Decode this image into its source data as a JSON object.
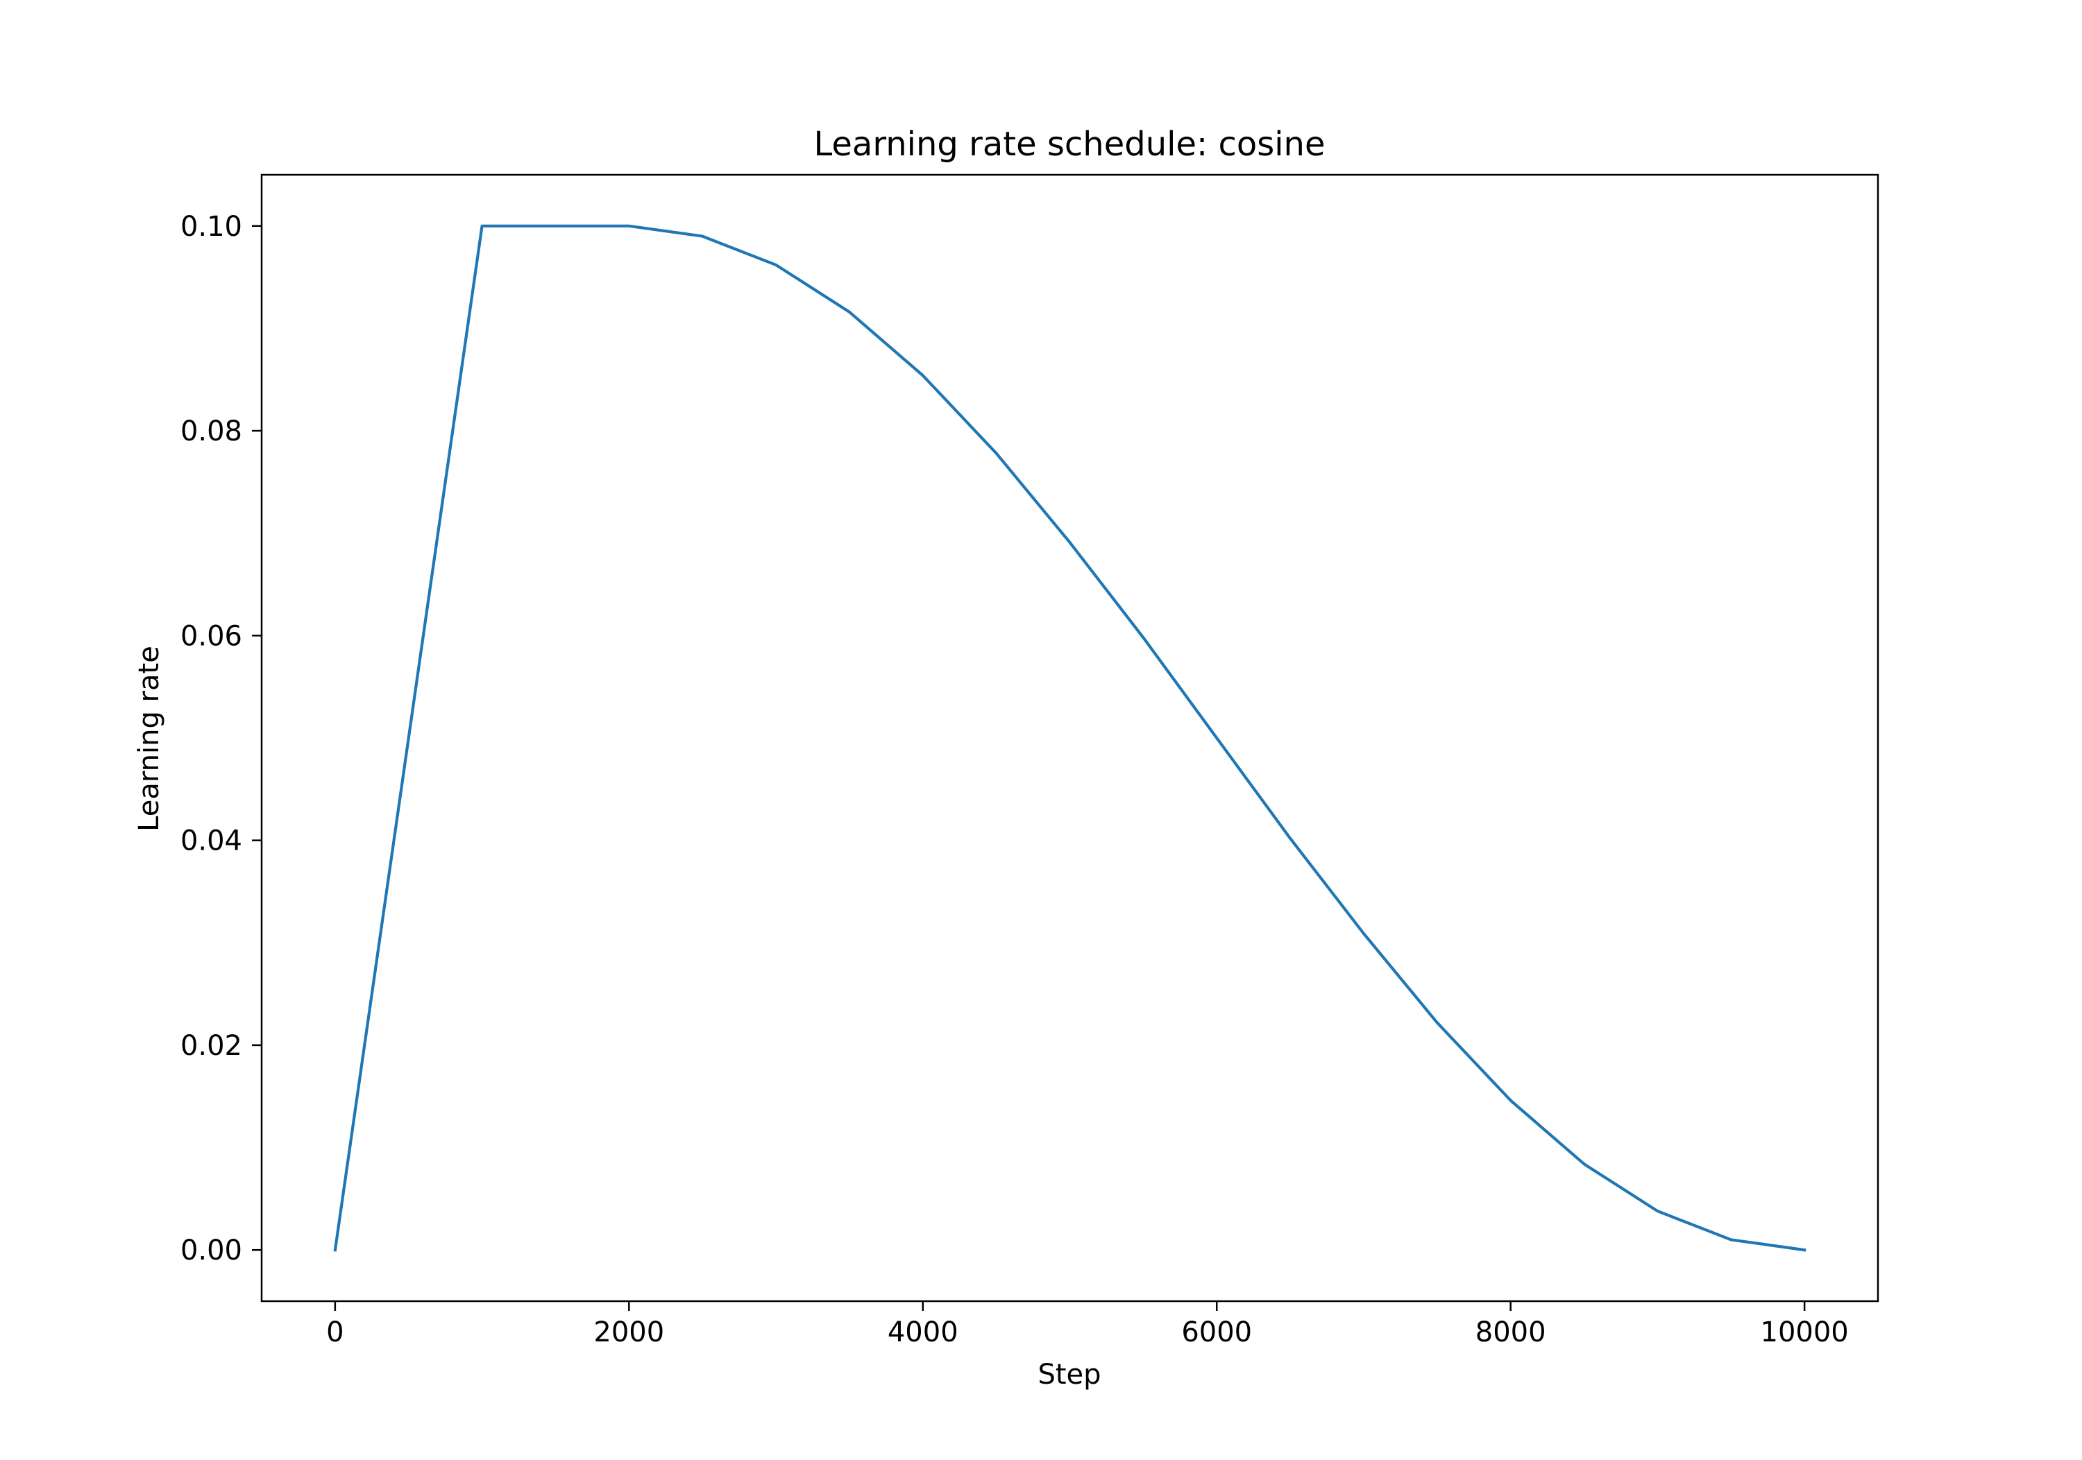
{
  "chart_data": {
    "type": "line",
    "title": "Learning rate schedule: cosine",
    "xlabel": "Step",
    "ylabel": "Learning rate",
    "xlim": [
      -500,
      10500
    ],
    "ylim": [
      -0.005,
      0.105
    ],
    "xticks": [
      0,
      2000,
      4000,
      6000,
      8000,
      10000
    ],
    "xtick_labels": [
      "0",
      "2000",
      "4000",
      "6000",
      "8000",
      "10000"
    ],
    "yticks": [
      0.0,
      0.02,
      0.04,
      0.06,
      0.08,
      0.1
    ],
    "ytick_labels": [
      "0.00",
      "0.02",
      "0.04",
      "0.06",
      "0.08",
      "0.10"
    ],
    "grid": false,
    "legend": "none",
    "series": [
      {
        "color": "#1f77b4",
        "x": [
          0,
          1000,
          2000,
          2500,
          3000,
          3500,
          4000,
          4500,
          5000,
          5500,
          6000,
          6500,
          7000,
          7500,
          8000,
          8500,
          9000,
          9500,
          10000
        ],
        "y": [
          0.0,
          0.1,
          0.1,
          0.099,
          0.0962,
          0.0916,
          0.0854,
          0.0778,
          0.0691,
          0.0598,
          0.05,
          0.0402,
          0.0309,
          0.0222,
          0.0146,
          0.0084,
          0.0038,
          0.001,
          0.0
        ]
      }
    ]
  }
}
